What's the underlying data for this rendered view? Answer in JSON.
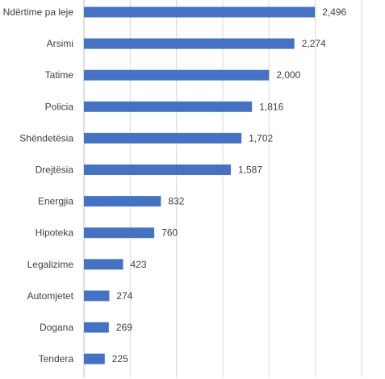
{
  "chart_data": {
    "type": "bar",
    "orientation": "horizontal",
    "categories": [
      "Ndërtime pa leje",
      "Arsimi",
      "Tatime",
      "Policia",
      "Shëndetësia",
      "Drejtësia",
      "Energjia",
      "Hipoteka",
      "Legalizime",
      "Automjetet",
      "Dogana",
      "Tendera"
    ],
    "values": [
      2496,
      2274,
      2000,
      1816,
      1702,
      1587,
      832,
      760,
      423,
      274,
      269,
      225
    ],
    "value_labels": [
      "2,496",
      "2,274",
      "2,000",
      "1,816",
      "1,702",
      "1,587",
      "832",
      "760",
      "423",
      "274",
      "269",
      "225"
    ],
    "xlim": [
      0,
      3000
    ],
    "grid": true,
    "bar_color": "#4472C4",
    "title": "",
    "xlabel": "",
    "ylabel": ""
  }
}
